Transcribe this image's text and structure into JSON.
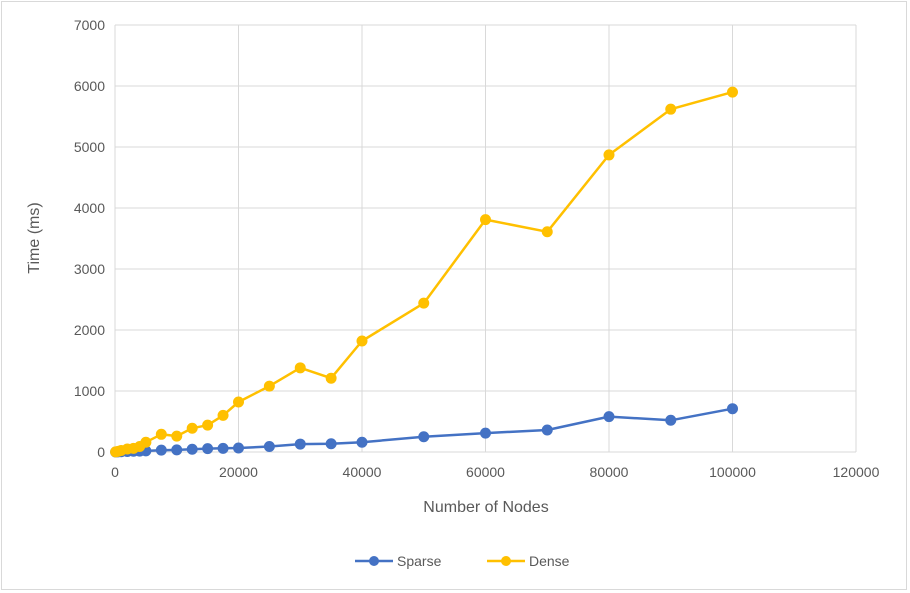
{
  "chart_data": {
    "type": "line",
    "title": "",
    "xlabel": "Number of Nodes",
    "ylabel": "Time (ms)",
    "xlim": [
      0,
      120000
    ],
    "ylim": [
      0,
      7000
    ],
    "xticks": [
      0,
      20000,
      40000,
      60000,
      80000,
      100000,
      120000
    ],
    "yticks": [
      0,
      1000,
      2000,
      3000,
      4000,
      5000,
      6000,
      7000
    ],
    "grid": true,
    "legend_position": "bottom",
    "series": [
      {
        "name": "Sparse",
        "color": "#4472c4",
        "x": [
          100,
          500,
          1000,
          2000,
          3000,
          4000,
          5000,
          7500,
          10000,
          12500,
          15000,
          17500,
          20000,
          25000,
          30000,
          35000,
          40000,
          50000,
          60000,
          70000,
          80000,
          90000,
          100000
        ],
        "y": [
          0,
          2,
          5,
          8,
          12,
          15,
          18,
          30,
          35,
          45,
          55,
          60,
          65,
          90,
          130,
          135,
          160,
          250,
          310,
          360,
          580,
          520,
          710
        ]
      },
      {
        "name": "Dense",
        "color": "#ffc000",
        "x": [
          100,
          500,
          1000,
          2000,
          3000,
          4000,
          5000,
          7500,
          10000,
          12500,
          15000,
          17500,
          20000,
          25000,
          30000,
          35000,
          40000,
          50000,
          60000,
          70000,
          80000,
          90000,
          100000
        ],
        "y": [
          2,
          10,
          25,
          50,
          60,
          90,
          160,
          290,
          260,
          390,
          440,
          600,
          820,
          1080,
          1380,
          1210,
          1820,
          2440,
          3810,
          3610,
          4870,
          5620,
          5900
        ]
      }
    ]
  }
}
